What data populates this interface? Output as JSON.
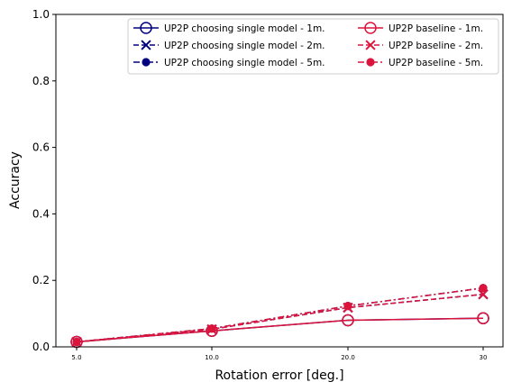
{
  "chart_data": {
    "type": "line",
    "title": "",
    "xlabel": "Rotation error [deg.]",
    "ylabel": "Accuracy",
    "x_tick_labels": [
      "5.0",
      "10.0",
      "20.0",
      "30"
    ],
    "y_ticks": [
      0.0,
      0.2,
      0.4,
      0.6,
      0.8,
      1.0
    ],
    "y_tick_labels": [
      "0.0",
      "0.2",
      "0.4",
      "0.6",
      "0.8",
      "1.0"
    ],
    "ylim": [
      0,
      1
    ],
    "grid": false,
    "legend_placement": "top-right",
    "series": [
      {
        "name": "UP2P choosing single model - 1m.",
        "values": [
          0.015,
          0.048,
          0.08,
          0.086
        ],
        "color": "#000080",
        "line_style": "solid",
        "marker": "open-circle"
      },
      {
        "name": "UP2P choosing single model - 2m.",
        "values": [
          0.015,
          0.053,
          0.118,
          0.158
        ],
        "color": "#000080",
        "line_style": "dashed",
        "marker": "x"
      },
      {
        "name": "UP2P choosing single model - 5m.",
        "values": [
          0.015,
          0.055,
          0.123,
          0.177
        ],
        "color": "#000080",
        "line_style": "dashdot",
        "marker": "filled-circle"
      },
      {
        "name": "UP2P baseline - 1m.",
        "values": [
          0.015,
          0.048,
          0.08,
          0.086
        ],
        "color": "#dc143c",
        "line_style": "solid",
        "marker": "open-circle"
      },
      {
        "name": "UP2P baseline - 2m.",
        "values": [
          0.015,
          0.053,
          0.118,
          0.158
        ],
        "color": "#dc143c",
        "line_style": "dashed",
        "marker": "x"
      },
      {
        "name": "UP2P baseline - 5m.",
        "values": [
          0.015,
          0.055,
          0.123,
          0.177
        ],
        "color": "#dc143c",
        "line_style": "dashdot",
        "marker": "filled-circle"
      }
    ]
  }
}
